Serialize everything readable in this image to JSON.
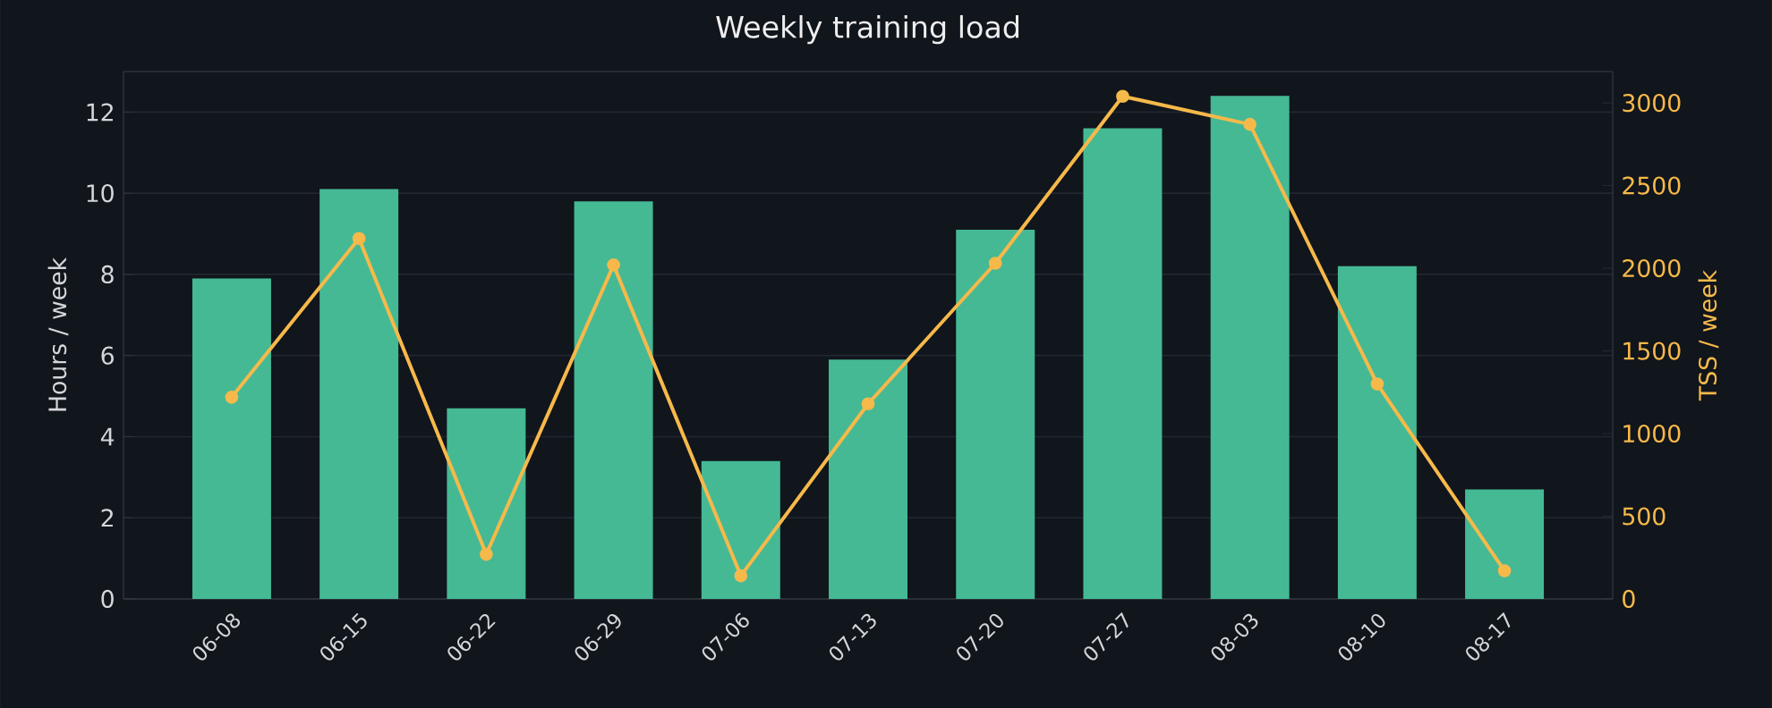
{
  "chart_data": {
    "type": "bar",
    "title": "Weekly training load",
    "ylabel": "Hours / week",
    "y2label": "TSS / week",
    "categories": [
      "06-08",
      "06-15",
      "06-22",
      "06-29",
      "07-06",
      "07-13",
      "07-20",
      "07-27",
      "08-03",
      "08-10",
      "08-17"
    ],
    "series": [
      {
        "color": "#45b994",
        "values": [
          7.9,
          10.1,
          4.7,
          9.8,
          3.4,
          5.9,
          9.1,
          11.6,
          12.4,
          8.2,
          2.7
        ]
      },
      {
        "type": "line",
        "axis": "y2",
        "color": "#f6b94a",
        "values": [
          1220,
          2180,
          270,
          2020,
          140,
          1180,
          2030,
          3040,
          2870,
          1300,
          170
        ]
      }
    ],
    "ylim": [
      0,
      13
    ],
    "yticks": [
      0,
      2,
      4,
      6,
      8,
      10,
      12
    ],
    "y2lim": [
      0,
      3190
    ],
    "y2ticks": [
      0,
      500,
      1000,
      1500,
      2000,
      2500,
      3000
    ],
    "grid": "y",
    "marker": "circle",
    "line_style": "solid"
  }
}
